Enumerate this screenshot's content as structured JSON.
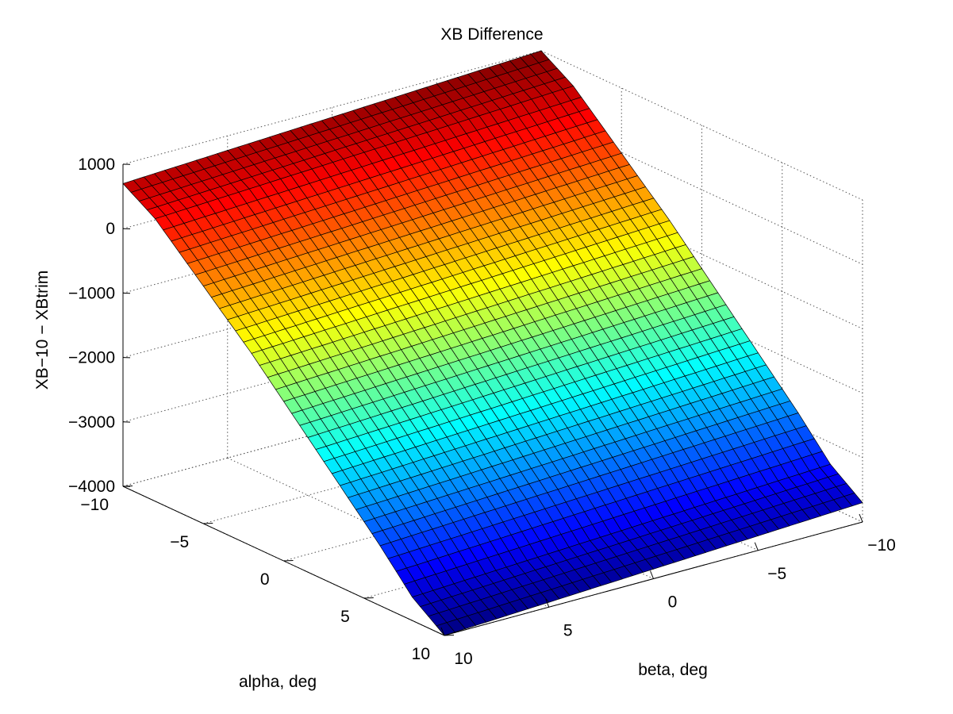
{
  "chart_data": {
    "type": "surface",
    "title": "XB Difference",
    "xlabel": "beta, deg",
    "ylabel": "alpha, deg",
    "zlabel": "XB−10 − XBtrim",
    "beta_range": [
      -10,
      10
    ],
    "alpha_range": [
      -10,
      10
    ],
    "z_range": [
      -4000,
      1000
    ],
    "x_ticks": [
      "10",
      "5",
      "0",
      "−5",
      "−10"
    ],
    "y_ticks": [
      "−10",
      "−5",
      "0",
      "5",
      "10"
    ],
    "z_ticks": [
      "−4000",
      "−3000",
      "−2000",
      "−1000",
      "0",
      "1000"
    ],
    "grid": true,
    "colormap": "jet",
    "surface_samples": {
      "description_axis": "alpha, deg",
      "alpha": [
        -10,
        -8,
        -6,
        -4,
        -2,
        0,
        2,
        4,
        6,
        8,
        10
      ],
      "z": [
        700,
        400,
        -50,
        -500,
        -950,
        -1450,
        -1950,
        -2450,
        -2950,
        -3500,
        -3850
      ]
    },
    "beta_tilt": [
      {
        "beta": -10,
        "z_at_alpha_minus10": 1000,
        "z_at_alpha_plus10": -3700
      },
      {
        "beta": 10,
        "z_at_alpha_minus10": 700,
        "z_at_alpha_plus10": -4000
      }
    ]
  }
}
